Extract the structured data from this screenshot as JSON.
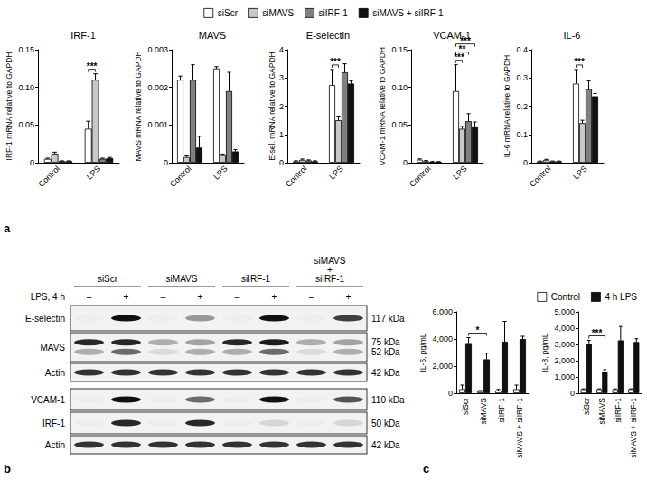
{
  "chart_data": [
    {
      "type": "bar",
      "title": "IRF-1",
      "y_label": "IRF-1 mRNA relative to GAPDH",
      "categories": [
        "Control",
        "LPS"
      ],
      "series": [
        {
          "name": "siScr",
          "color": "#ffffff",
          "values": [
            0.005,
            0.045
          ],
          "errors": [
            0.001,
            0.01
          ]
        },
        {
          "name": "siMAVS",
          "color": "#c8c8c8",
          "values": [
            0.012,
            0.11
          ],
          "errors": [
            0.002,
            0.008
          ]
        },
        {
          "name": "siIRF-1",
          "color": "#808080",
          "values": [
            0.002,
            0.005
          ],
          "errors": [
            0.0005,
            0.001
          ]
        },
        {
          "name": "siMAVS + siIRF-1",
          "color": "#111111",
          "values": [
            0.002,
            0.006
          ],
          "errors": [
            0.0005,
            0.001
          ]
        }
      ],
      "ylim": [
        0,
        0.15
      ],
      "yticks": [
        0,
        0.05,
        {
          "value": 0.1,
          "label": "0.10"
        },
        0.15
      ],
      "grid": false,
      "legend": "top",
      "significance": [
        {
          "from": {
            "category": "LPS",
            "series": "siScr"
          },
          "to": {
            "category": "LPS",
            "series": "siMAVS"
          },
          "label": "***"
        }
      ]
    },
    {
      "type": "bar",
      "title": "MAVS",
      "y_label": "MAVS mRNA relative to GAPDH",
      "categories": [
        "Control",
        "LPS"
      ],
      "series": [
        {
          "name": "siScr",
          "color": "#ffffff",
          "values": [
            0.0022,
            0.0025
          ],
          "errors": [
            0.0001,
            5e-05
          ]
        },
        {
          "name": "siMAVS",
          "color": "#c8c8c8",
          "values": [
            0.00015,
            0.0002
          ],
          "errors": [
            3e-05,
            3e-05
          ]
        },
        {
          "name": "siIRF-1",
          "color": "#808080",
          "values": [
            0.0022,
            0.0019
          ],
          "errors": [
            0.0004,
            0.0005
          ]
        },
        {
          "name": "siMAVS + siIRF-1",
          "color": "#111111",
          "values": [
            0.0004,
            0.0003
          ],
          "errors": [
            0.0003,
            5e-05
          ]
        }
      ],
      "ylim": [
        0,
        0.003
      ],
      "yticks": [
        0,
        0.001,
        0.002,
        0.003
      ],
      "grid": false,
      "significance": []
    },
    {
      "type": "bar",
      "title": "E-selectin",
      "y_label": "E-sel. mRNA relative to GAPDH",
      "categories": [
        "Control",
        "LPS"
      ],
      "series": [
        {
          "name": "siScr",
          "color": "#ffffff",
          "values": [
            0.05,
            2.75
          ],
          "errors": [
            0.02,
            0.55
          ]
        },
        {
          "name": "siMAVS",
          "color": "#c8c8c8",
          "values": [
            0.1,
            1.5
          ],
          "errors": [
            0.03,
            0.15
          ]
        },
        {
          "name": "siIRF-1",
          "color": "#808080",
          "values": [
            0.08,
            3.2
          ],
          "errors": [
            0.02,
            0.3
          ]
        },
        {
          "name": "siMAVS + siIRF-1",
          "color": "#111111",
          "values": [
            0.05,
            2.8
          ],
          "errors": [
            0.02,
            0.1
          ]
        }
      ],
      "ylim": [
        0,
        4
      ],
      "yticks": [
        0,
        1,
        2,
        3,
        4
      ],
      "grid": false,
      "significance": [
        {
          "from": {
            "category": "LPS",
            "series": "siScr"
          },
          "to": {
            "category": "LPS",
            "series": "siMAVS"
          },
          "label": "***"
        }
      ]
    },
    {
      "type": "bar",
      "title": "VCAM-1",
      "y_label": "VCAM-1 mRNA relative to GAPDH",
      "categories": [
        "Control",
        "LPS"
      ],
      "series": [
        {
          "name": "siScr",
          "color": "#ffffff",
          "values": [
            0.004,
            0.095
          ],
          "errors": [
            0.001,
            0.035
          ]
        },
        {
          "name": "siMAVS",
          "color": "#c8c8c8",
          "values": [
            0.002,
            0.045
          ],
          "errors": [
            0.001,
            0.003
          ]
        },
        {
          "name": "siIRF-1",
          "color": "#808080",
          "values": [
            0.001,
            0.055
          ],
          "errors": [
            0.0005,
            0.01
          ]
        },
        {
          "name": "siMAVS + siIRF-1",
          "color": "#111111",
          "values": [
            0.001,
            0.048
          ],
          "errors": [
            0.0005,
            0.006
          ]
        }
      ],
      "ylim": [
        0,
        0.15
      ],
      "yticks": [
        0,
        0.05,
        {
          "value": 0.1,
          "label": "0.10"
        },
        0.15
      ],
      "grid": false,
      "significance": [
        {
          "from": {
            "category": "LPS",
            "series": "siScr"
          },
          "to": {
            "category": "LPS",
            "series": "siMAVS"
          },
          "label": "***"
        },
        {
          "from": {
            "category": "LPS",
            "series": "siScr"
          },
          "to": {
            "category": "LPS",
            "series": "siIRF-1"
          },
          "label": "**"
        },
        {
          "from": {
            "category": "LPS",
            "series": "siScr"
          },
          "to": {
            "category": "LPS",
            "series": "siMAVS + siIRF-1"
          },
          "label": "***"
        }
      ]
    },
    {
      "type": "bar",
      "title": "IL-6",
      "y_label": "IL-6 mRNA relative to GAPDH",
      "categories": [
        "Control",
        "LPS"
      ],
      "series": [
        {
          "name": "siScr",
          "color": "#ffffff",
          "values": [
            0.005,
            0.28
          ],
          "errors": [
            0.001,
            0.05
          ]
        },
        {
          "name": "siMAVS",
          "color": "#c8c8c8",
          "values": [
            0.01,
            0.14
          ],
          "errors": [
            0.002,
            0.01
          ]
        },
        {
          "name": "siIRF-1",
          "color": "#808080",
          "values": [
            0.005,
            0.26
          ],
          "errors": [
            0.001,
            0.03
          ]
        },
        {
          "name": "siMAVS + siIRF-1",
          "color": "#111111",
          "values": [
            0.005,
            0.235
          ],
          "errors": [
            0.001,
            0.01
          ]
        }
      ],
      "ylim": [
        0,
        0.4
      ],
      "yticks": [
        0,
        0.1,
        0.2,
        0.3,
        0.4
      ],
      "grid": false,
      "significance": [
        {
          "from": {
            "category": "LPS",
            "series": "siScr"
          },
          "to": {
            "category": "LPS",
            "series": "siMAVS"
          },
          "label": "***"
        }
      ]
    },
    {
      "type": "bar",
      "y_label": "IL-6, pg/mL",
      "categories": [
        "siScr",
        "siMAVS",
        "siIRF-1",
        "siMAVS + siIRF-1"
      ],
      "series": [
        {
          "name": "Control",
          "color": "#ffffff",
          "values": [
            300,
            150,
            200,
            300
          ],
          "errors": [
            300,
            50,
            80,
            300
          ]
        },
        {
          "name": "4 h LPS",
          "color": "#111111",
          "values": [
            3700,
            2500,
            3800,
            4000
          ],
          "errors": [
            400,
            450,
            1500,
            200
          ]
        }
      ],
      "ylim": [
        0,
        6000
      ],
      "yticks": [
        0,
        {
          "value": 2000,
          "label": "2,000"
        },
        {
          "value": 4000,
          "label": "4,000"
        },
        {
          "value": 6000,
          "label": "6,000"
        }
      ],
      "grid": false,
      "legend": "top-right",
      "significance": [
        {
          "from": {
            "category": "siScr",
            "series": "4 h LPS"
          },
          "to": {
            "category": "siMAVS",
            "series": "4 h LPS"
          },
          "label": "*"
        }
      ]
    },
    {
      "type": "bar",
      "y_label": "IL-8, pg/mL",
      "categories": [
        "siScr",
        "siMAVS",
        "siIRF-1",
        "siMAVS + siIRF-1"
      ],
      "series": [
        {
          "name": "Control",
          "color": "#ffffff",
          "values": [
            250,
            250,
            250,
            250
          ],
          "errors": [
            20,
            20,
            20,
            20
          ]
        },
        {
          "name": "4 h LPS",
          "color": "#111111",
          "values": [
            3050,
            1300,
            3250,
            3150
          ],
          "errors": [
            200,
            150,
            850,
            200
          ]
        }
      ],
      "ylim": [
        0,
        5000
      ],
      "yticks": [
        0,
        {
          "value": 1000,
          "label": "1,000"
        },
        {
          "value": 2000,
          "label": "2,000"
        },
        {
          "value": 3000,
          "label": "3,000"
        },
        {
          "value": 4000,
          "label": "4,000"
        },
        {
          "value": 5000,
          "label": "5,000"
        }
      ],
      "grid": false,
      "significance": [
        {
          "from": {
            "category": "siScr",
            "series": "4 h LPS"
          },
          "to": {
            "category": "siMAVS",
            "series": "4 h LPS"
          },
          "label": "***"
        }
      ]
    }
  ],
  "panel_labels": [
    "a",
    "b",
    "c"
  ],
  "blot": {
    "groups": [
      [
        "siScr"
      ],
      [
        "siMAVS"
      ],
      [
        "siIRF-1"
      ],
      [
        "siMAVS",
        "+",
        "siIRF-1"
      ]
    ],
    "treatment_label": "LPS, 4 h",
    "treatment": [
      "–",
      "+",
      "–",
      "+",
      "–",
      "+",
      "–",
      "+"
    ],
    "blocks": [
      [
        {
          "name": "E-selectin",
          "bands": [
            {
              "size": "117 kDa",
              "intensity": [
                0.02,
                1,
                0.02,
                0.4,
                0.02,
                1,
                0.02,
                0.8
              ]
            }
          ]
        },
        {
          "name": "MAVS",
          "bands": [
            {
              "size": "75 kDa",
              "intensity": [
                0.9,
                0.9,
                0.3,
                0.35,
                0.9,
                0.95,
                0.3,
                0.35
              ]
            },
            {
              "size": "52 kDa",
              "intensity": [
                0.3,
                0.6,
                0.1,
                0.3,
                0.3,
                0.6,
                0.1,
                0.3
              ]
            }
          ]
        },
        {
          "name": "Actin",
          "bands": [
            {
              "size": "42 kDa",
              "intensity": [
                0.85,
                0.85,
                0.85,
                0.85,
                0.85,
                0.85,
                0.85,
                0.85
              ]
            }
          ]
        }
      ],
      [
        {
          "name": "VCAM-1",
          "bands": [
            {
              "size": "110 kDa",
              "intensity": [
                0.02,
                1,
                0.02,
                0.6,
                0.02,
                1,
                0.02,
                0.7
              ]
            }
          ]
        },
        {
          "name": "IRF-1",
          "bands": [
            {
              "size": "50 kDa",
              "intensity": [
                0.02,
                0.9,
                0.02,
                0.9,
                0.02,
                0.12,
                0.02,
                0.12
              ]
            }
          ]
        },
        {
          "name": "Actin",
          "bands": [
            {
              "size": "42 kDa",
              "intensity": [
                0.85,
                0.85,
                0.85,
                0.85,
                0.85,
                0.85,
                0.85,
                0.85
              ]
            }
          ]
        }
      ]
    ]
  }
}
